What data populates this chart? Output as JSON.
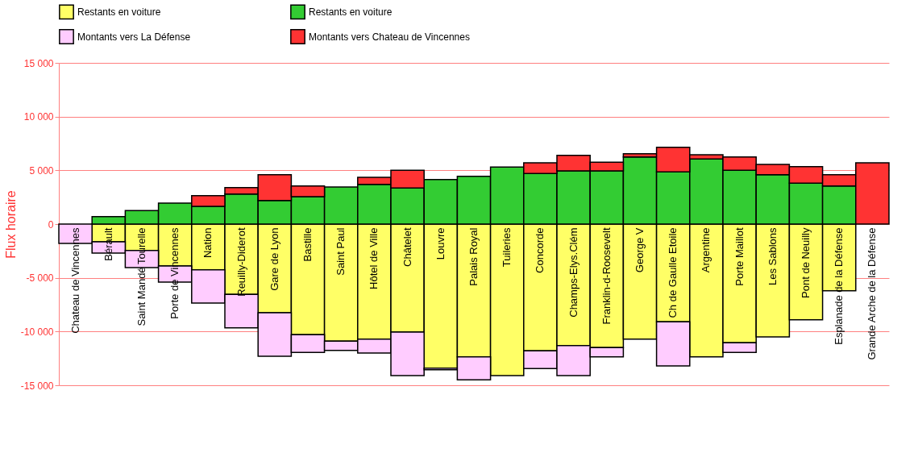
{
  "chart_data": {
    "type": "bar",
    "stacked": true,
    "ylabel": "Flux horaire",
    "categories": [
      "Chateau de Vincennes",
      "Bérault",
      "Saint Mandé Tourelle",
      "Porte de Vincennes",
      "Nation",
      "Reuilly-Diderot",
      "Gare de Lyon",
      "Bastille",
      "Saint Paul",
      "Hôtel de Ville",
      "Châtelet",
      "Louvre",
      "Palais Royal",
      "Tuileries",
      "Concorde",
      "Champs-Elys.Clém",
      "Franklin-d-Roosevelt",
      "George V",
      "Ch de Gaulle Etoile",
      "Argentine",
      "Porte Maillot",
      "Les Sablons",
      "Pont de Neuilly",
      "Esplanade de la Défense",
      "Grande Arche de la Défense"
    ],
    "series": [
      {
        "name": "Restants en voiture",
        "color": "#ffff66",
        "values": [
          0,
          -1650,
          -2450,
          -3900,
          -4250,
          -6550,
          -8250,
          -10300,
          -10900,
          -10700,
          -10050,
          -13400,
          -12350,
          -14100,
          -11800,
          -11300,
          -11500,
          -10700,
          -9100,
          -12350,
          -11050,
          -10500,
          -8900,
          -6200,
          0
        ]
      },
      {
        "name": "Restants en voiture",
        "color": "#33cc33",
        "values": [
          0,
          700,
          1250,
          1950,
          1650,
          2800,
          2200,
          2550,
          3450,
          3700,
          3350,
          4150,
          4450,
          5300,
          4700,
          4950,
          4950,
          6250,
          4850,
          6050,
          5000,
          4600,
          3800,
          3550,
          0
        ]
      },
      {
        "name": "Montants vers La Défense",
        "color": "#ffccff",
        "values": [
          -1800,
          -1050,
          -1600,
          -1500,
          -3100,
          -3100,
          -4050,
          -1650,
          -850,
          -1300,
          -4050,
          -150,
          -2150,
          0,
          -1650,
          -2800,
          -850,
          0,
          -4100,
          0,
          -900,
          0,
          0,
          0,
          0
        ]
      },
      {
        "name": "Montants vers Chateau de Vincennes",
        "color": "#ff3333",
        "values": [
          0,
          0,
          0,
          0,
          1000,
          600,
          2400,
          1000,
          0,
          650,
          1650,
          0,
          0,
          0,
          1000,
          1450,
          800,
          300,
          2300,
          400,
          1250,
          950,
          1550,
          1050,
          5700
        ]
      }
    ],
    "ylim": [
      -15000,
      15000
    ],
    "yticks": [
      {
        "value": -15000,
        "label": "-15 000"
      },
      {
        "value": -10000,
        "label": "-10 000"
      },
      {
        "value": -5000,
        "label": "-5 000"
      },
      0,
      {
        "value": 5000,
        "label": "5 000"
      },
      {
        "value": 10000,
        "label": "10 000"
      },
      {
        "value": 15000,
        "label": "15 000"
      }
    ],
    "grid": "y",
    "legend": "top"
  }
}
